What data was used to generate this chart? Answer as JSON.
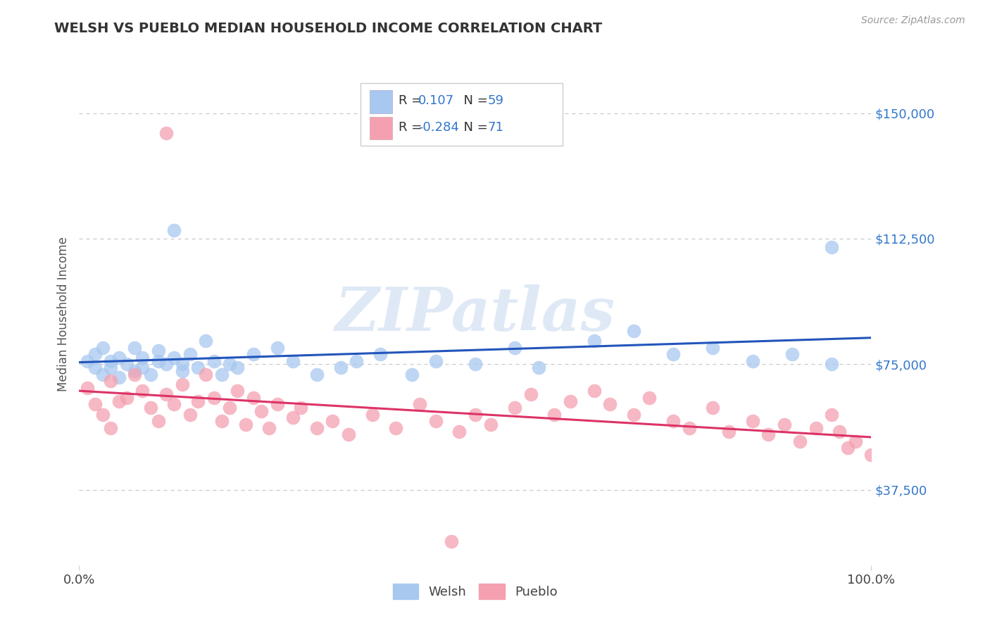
{
  "title": "WELSH VS PUEBLO MEDIAN HOUSEHOLD INCOME CORRELATION CHART",
  "source": "Source: ZipAtlas.com",
  "ylabel": "Median Household Income",
  "xlim": [
    0.0,
    1.0
  ],
  "ylim": [
    15000,
    165000
  ],
  "yticks": [
    37500,
    75000,
    112500,
    150000
  ],
  "ytick_labels": [
    "$37,500",
    "$75,000",
    "$112,500",
    "$150,000"
  ],
  "xtick_labels": [
    "0.0%",
    "100.0%"
  ],
  "welsh_color": "#a8c8f0",
  "pueblo_color": "#f4a0b0",
  "welsh_line_color": "#2255bb",
  "pueblo_line_color": "#dd3366",
  "welsh_R": 0.107,
  "welsh_N": 59,
  "pueblo_R": -0.284,
  "pueblo_N": 71,
  "background_color": "#ffffff",
  "grid_color": "#c8c8c8",
  "watermark": "ZIPatlas",
  "welsh_line_y0": 73000,
  "welsh_line_y1": 83000,
  "pueblo_line_y0": 67000,
  "pueblo_line_y1": 53000
}
